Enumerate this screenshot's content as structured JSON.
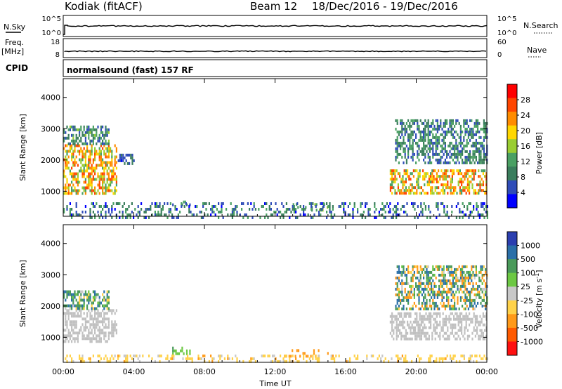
{
  "header": {
    "station": "Kodiak (fitACF)",
    "beam": "Beam 12",
    "date_range": "18/Dec/2016 - 19/Dec/2016",
    "mode": "normalsound (fast) 157 RF"
  },
  "side_labels": {
    "nsky": "N.Sky",
    "freq_line1": "Freq.",
    "freq_line2": "[MHz]",
    "cpid": "CPID",
    "nsearch": "N.Search",
    "nave": "Nave"
  },
  "strip_ticks": {
    "nsky_left": [
      "10^5",
      "10^0"
    ],
    "nsky_right": [
      "10^5",
      "10^0"
    ],
    "freq_left": [
      "18",
      "8"
    ],
    "freq_right": [
      "60",
      "0"
    ]
  },
  "colors": {
    "power_scale": [
      "#0000ff",
      "#2f4cb8",
      "#3a7d5c",
      "#4aa063",
      "#9acd32",
      "#ffd700",
      "#ff8c00",
      "#ff4500",
      "#ff0000"
    ],
    "velocity_scale": [
      "#2b3fb0",
      "#2a6fa8",
      "#4a9a5a",
      "#6cc843",
      "#c8c8c8",
      "#ffd24a",
      "#ff9a1a",
      "#ff5a00",
      "#ff1010"
    ],
    "ground_scatter": "#c0c0c0",
    "frame": "#000000"
  },
  "chart_data": [
    {
      "type": "heatmap",
      "name": "power",
      "title": "Kodiak (fitACF) Beam 12 18/Dec/2016 - 19/Dec/2016",
      "xlabel": "Time UT",
      "ylabel": "Slant Range [km]",
      "x_ticks": [
        "00:00",
        "04:00",
        "08:00",
        "12:00",
        "16:00",
        "20:00",
        "00:00"
      ],
      "xlim": [
        0,
        24
      ],
      "y_ticks": [
        1000,
        2000,
        3000,
        4000
      ],
      "ylim": [
        200,
        4600
      ],
      "colorbar_label": "Power [dB]",
      "colorbar_ticks": [
        4,
        8,
        12,
        16,
        20,
        24,
        28
      ],
      "colorbar_range": [
        0,
        32
      ],
      "regions": [
        {
          "t0": 0.0,
          "t1": 3.0,
          "r0": 900,
          "r1": 2500,
          "value": 20,
          "spread": 8
        },
        {
          "t0": 0.0,
          "t1": 2.6,
          "r0": 2500,
          "r1": 3100,
          "value": 10,
          "spread": 5
        },
        {
          "t0": 3.0,
          "t1": 4.0,
          "r0": 1900,
          "r1": 2200,
          "value": 6,
          "spread": 3
        },
        {
          "t0": 6.0,
          "t1": 7.2,
          "r0": 520,
          "r1": 700,
          "value": 10,
          "spread": 4
        },
        {
          "t0": 13.0,
          "t1": 15.0,
          "r0": 380,
          "r1": 620,
          "value": 12,
          "spread": 5
        },
        {
          "t0": 18.5,
          "t1": 24.0,
          "r0": 950,
          "r1": 1700,
          "value": 20,
          "spread": 8
        },
        {
          "t0": 18.8,
          "t1": 24.0,
          "r0": 1900,
          "r1": 3300,
          "value": 9,
          "spread": 5
        },
        {
          "t0": 0.0,
          "t1": 24.0,
          "r0": 200,
          "r1": 650,
          "value": 8,
          "spread": 6
        }
      ]
    },
    {
      "type": "heatmap",
      "name": "velocity",
      "xlabel": "Time UT",
      "ylabel": "Slant Range [km]",
      "x_ticks": [
        "00:00",
        "04:00",
        "08:00",
        "12:00",
        "16:00",
        "20:00",
        "00:00"
      ],
      "xlim": [
        0,
        24
      ],
      "y_ticks": [
        1000,
        2000,
        3000,
        4000
      ],
      "ylim": [
        200,
        4600
      ],
      "colorbar_label": "Velocity [m s^-1]",
      "colorbar_ticks": [
        1000,
        500,
        100,
        25,
        -25,
        -100,
        -500,
        -1000
      ],
      "regions": [
        {
          "t0": 0.0,
          "t1": 3.0,
          "r0": 900,
          "r1": 1900,
          "value": 0,
          "kind": "ground"
        },
        {
          "t0": 0.0,
          "t1": 2.6,
          "r0": 1900,
          "r1": 2500,
          "value": 300,
          "spread": 400
        },
        {
          "t0": 6.0,
          "t1": 7.2,
          "r0": 520,
          "r1": 700,
          "value": 80,
          "spread": 40
        },
        {
          "t0": 12.5,
          "t1": 15.0,
          "r0": 380,
          "r1": 620,
          "value": -150,
          "spread": 60
        },
        {
          "t0": 18.5,
          "t1": 24.0,
          "r0": 950,
          "r1": 1800,
          "value": 0,
          "kind": "ground"
        },
        {
          "t0": 18.8,
          "t1": 24.0,
          "r0": 1900,
          "r1": 3300,
          "value": 200,
          "spread": 600
        },
        {
          "t0": 0.0,
          "t1": 24.0,
          "r0": 200,
          "r1": 450,
          "value": -60,
          "spread": 50
        }
      ]
    }
  ]
}
